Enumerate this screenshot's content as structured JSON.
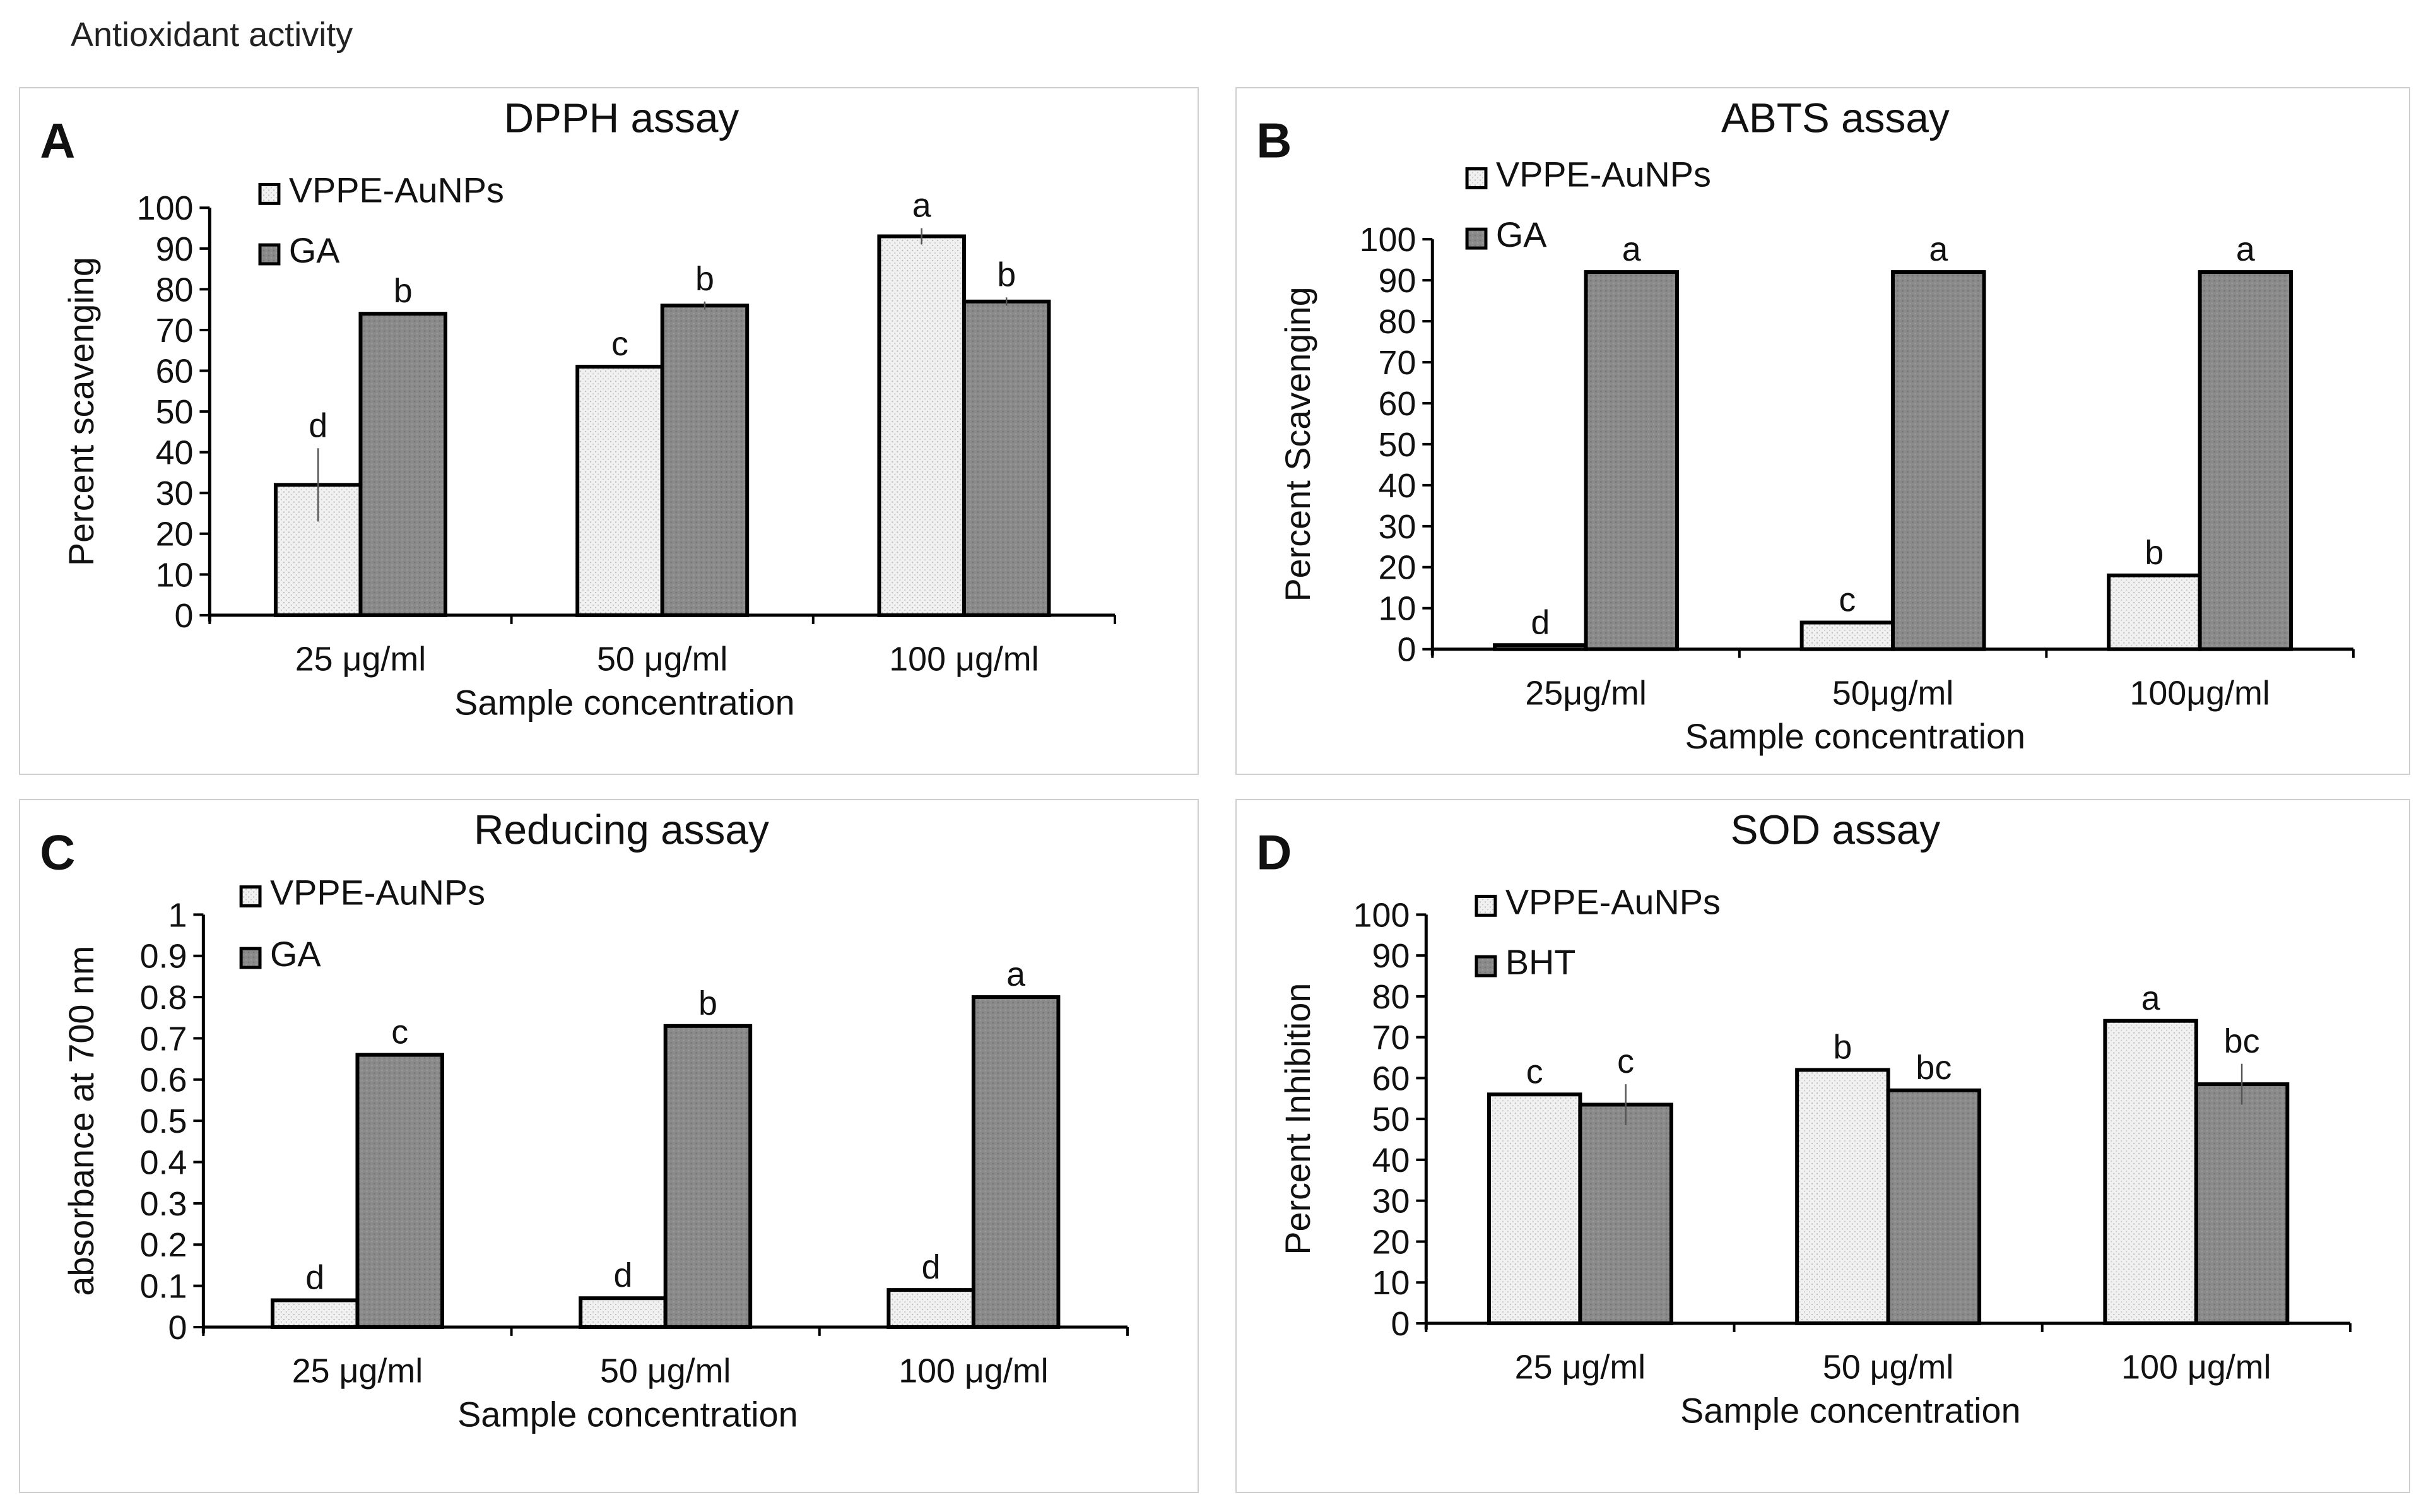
{
  "figure_title": "Antioxidant activity",
  "colors": {
    "vppe": "#f1f1f1",
    "standard": "#8a8a8a",
    "axis": "#000000"
  },
  "chart_data": [
    {
      "panel": "A",
      "type": "bar",
      "title": "DPPH assay",
      "xlabel": "Sample concentration",
      "ylabel": "Percent scavenging",
      "ylim": [
        0,
        100
      ],
      "yticks": [
        "0",
        "10",
        "20",
        "30",
        "40",
        "50",
        "60",
        "70",
        "80",
        "90",
        "100"
      ],
      "categories": [
        "25 μg/ml",
        "50 μg/ml",
        "100 μg/ml"
      ],
      "legend_position": "top-left",
      "series": [
        {
          "name": "VPPE-AuNPs",
          "values": [
            32,
            61,
            93
          ],
          "errors": [
            9,
            0,
            2
          ],
          "labels": [
            "d",
            "c",
            "a"
          ]
        },
        {
          "name": "GA",
          "values": [
            74,
            76,
            77
          ],
          "errors": [
            0,
            1,
            1
          ],
          "labels": [
            "b",
            "b",
            "b"
          ]
        }
      ]
    },
    {
      "panel": "B",
      "type": "bar",
      "title": "ABTS assay",
      "xlabel": "Sample concentration",
      "ylabel": "Percent Scavenging",
      "ylim": [
        0,
        100
      ],
      "yticks": [
        "0",
        "10",
        "20",
        "30",
        "40",
        "50",
        "60",
        "70",
        "80",
        "90",
        "100"
      ],
      "categories": [
        "25μg/ml",
        "50μg/ml",
        "100μg/ml"
      ],
      "legend_position": "top-left",
      "series": [
        {
          "name": "VPPE-AuNPs",
          "values": [
            1,
            6.5,
            18
          ],
          "errors": [
            0,
            0,
            0
          ],
          "labels": [
            "d",
            "c",
            "b"
          ]
        },
        {
          "name": "GA",
          "values": [
            92,
            92,
            92
          ],
          "errors": [
            0,
            0,
            0
          ],
          "labels": [
            "a",
            "a",
            "a"
          ]
        }
      ]
    },
    {
      "panel": "C",
      "type": "bar",
      "title": "Reducing assay",
      "xlabel": "Sample concentration",
      "ylabel": "absorbance at 700 nm",
      "ylim": [
        0,
        1
      ],
      "yticks": [
        "0",
        "0.1",
        "0.2",
        "0.3",
        "0.4",
        "0.5",
        "0.6",
        "0.7",
        "0.8",
        "0.9",
        "1"
      ],
      "categories": [
        "25 μg/ml",
        "50  μg/ml",
        "100  μg/ml"
      ],
      "legend_position": "top-left",
      "series": [
        {
          "name": "VPPE-AuNPs",
          "values": [
            0.065,
            0.07,
            0.09
          ],
          "errors": [
            0,
            0,
            0
          ],
          "labels": [
            "d",
            "d",
            "d"
          ]
        },
        {
          "name": "GA",
          "values": [
            0.66,
            0.73,
            0.8
          ],
          "errors": [
            0,
            0,
            0
          ],
          "labels": [
            "c",
            "b",
            "a"
          ]
        }
      ]
    },
    {
      "panel": "D",
      "type": "bar",
      "title": "SOD assay",
      "xlabel": "Sample concentration",
      "ylabel": "Percent Inhibition",
      "ylim": [
        0,
        100
      ],
      "yticks": [
        "0",
        "10",
        "20",
        "30",
        "40",
        "50",
        "60",
        "70",
        "80",
        "90",
        "100"
      ],
      "categories": [
        "25 μg/ml",
        "50 μg/ml",
        "100 μg/ml"
      ],
      "legend_position": "top-left",
      "series": [
        {
          "name": "VPPE-AuNPs",
          "values": [
            56,
            62,
            74
          ],
          "errors": [
            0,
            0,
            0
          ],
          "labels": [
            "c",
            "b",
            "a"
          ]
        },
        {
          "name": "BHT",
          "values": [
            53.5,
            57,
            58.5
          ],
          "errors": [
            5,
            0,
            5
          ],
          "labels": [
            "c",
            "bc",
            "bc"
          ]
        }
      ]
    }
  ]
}
